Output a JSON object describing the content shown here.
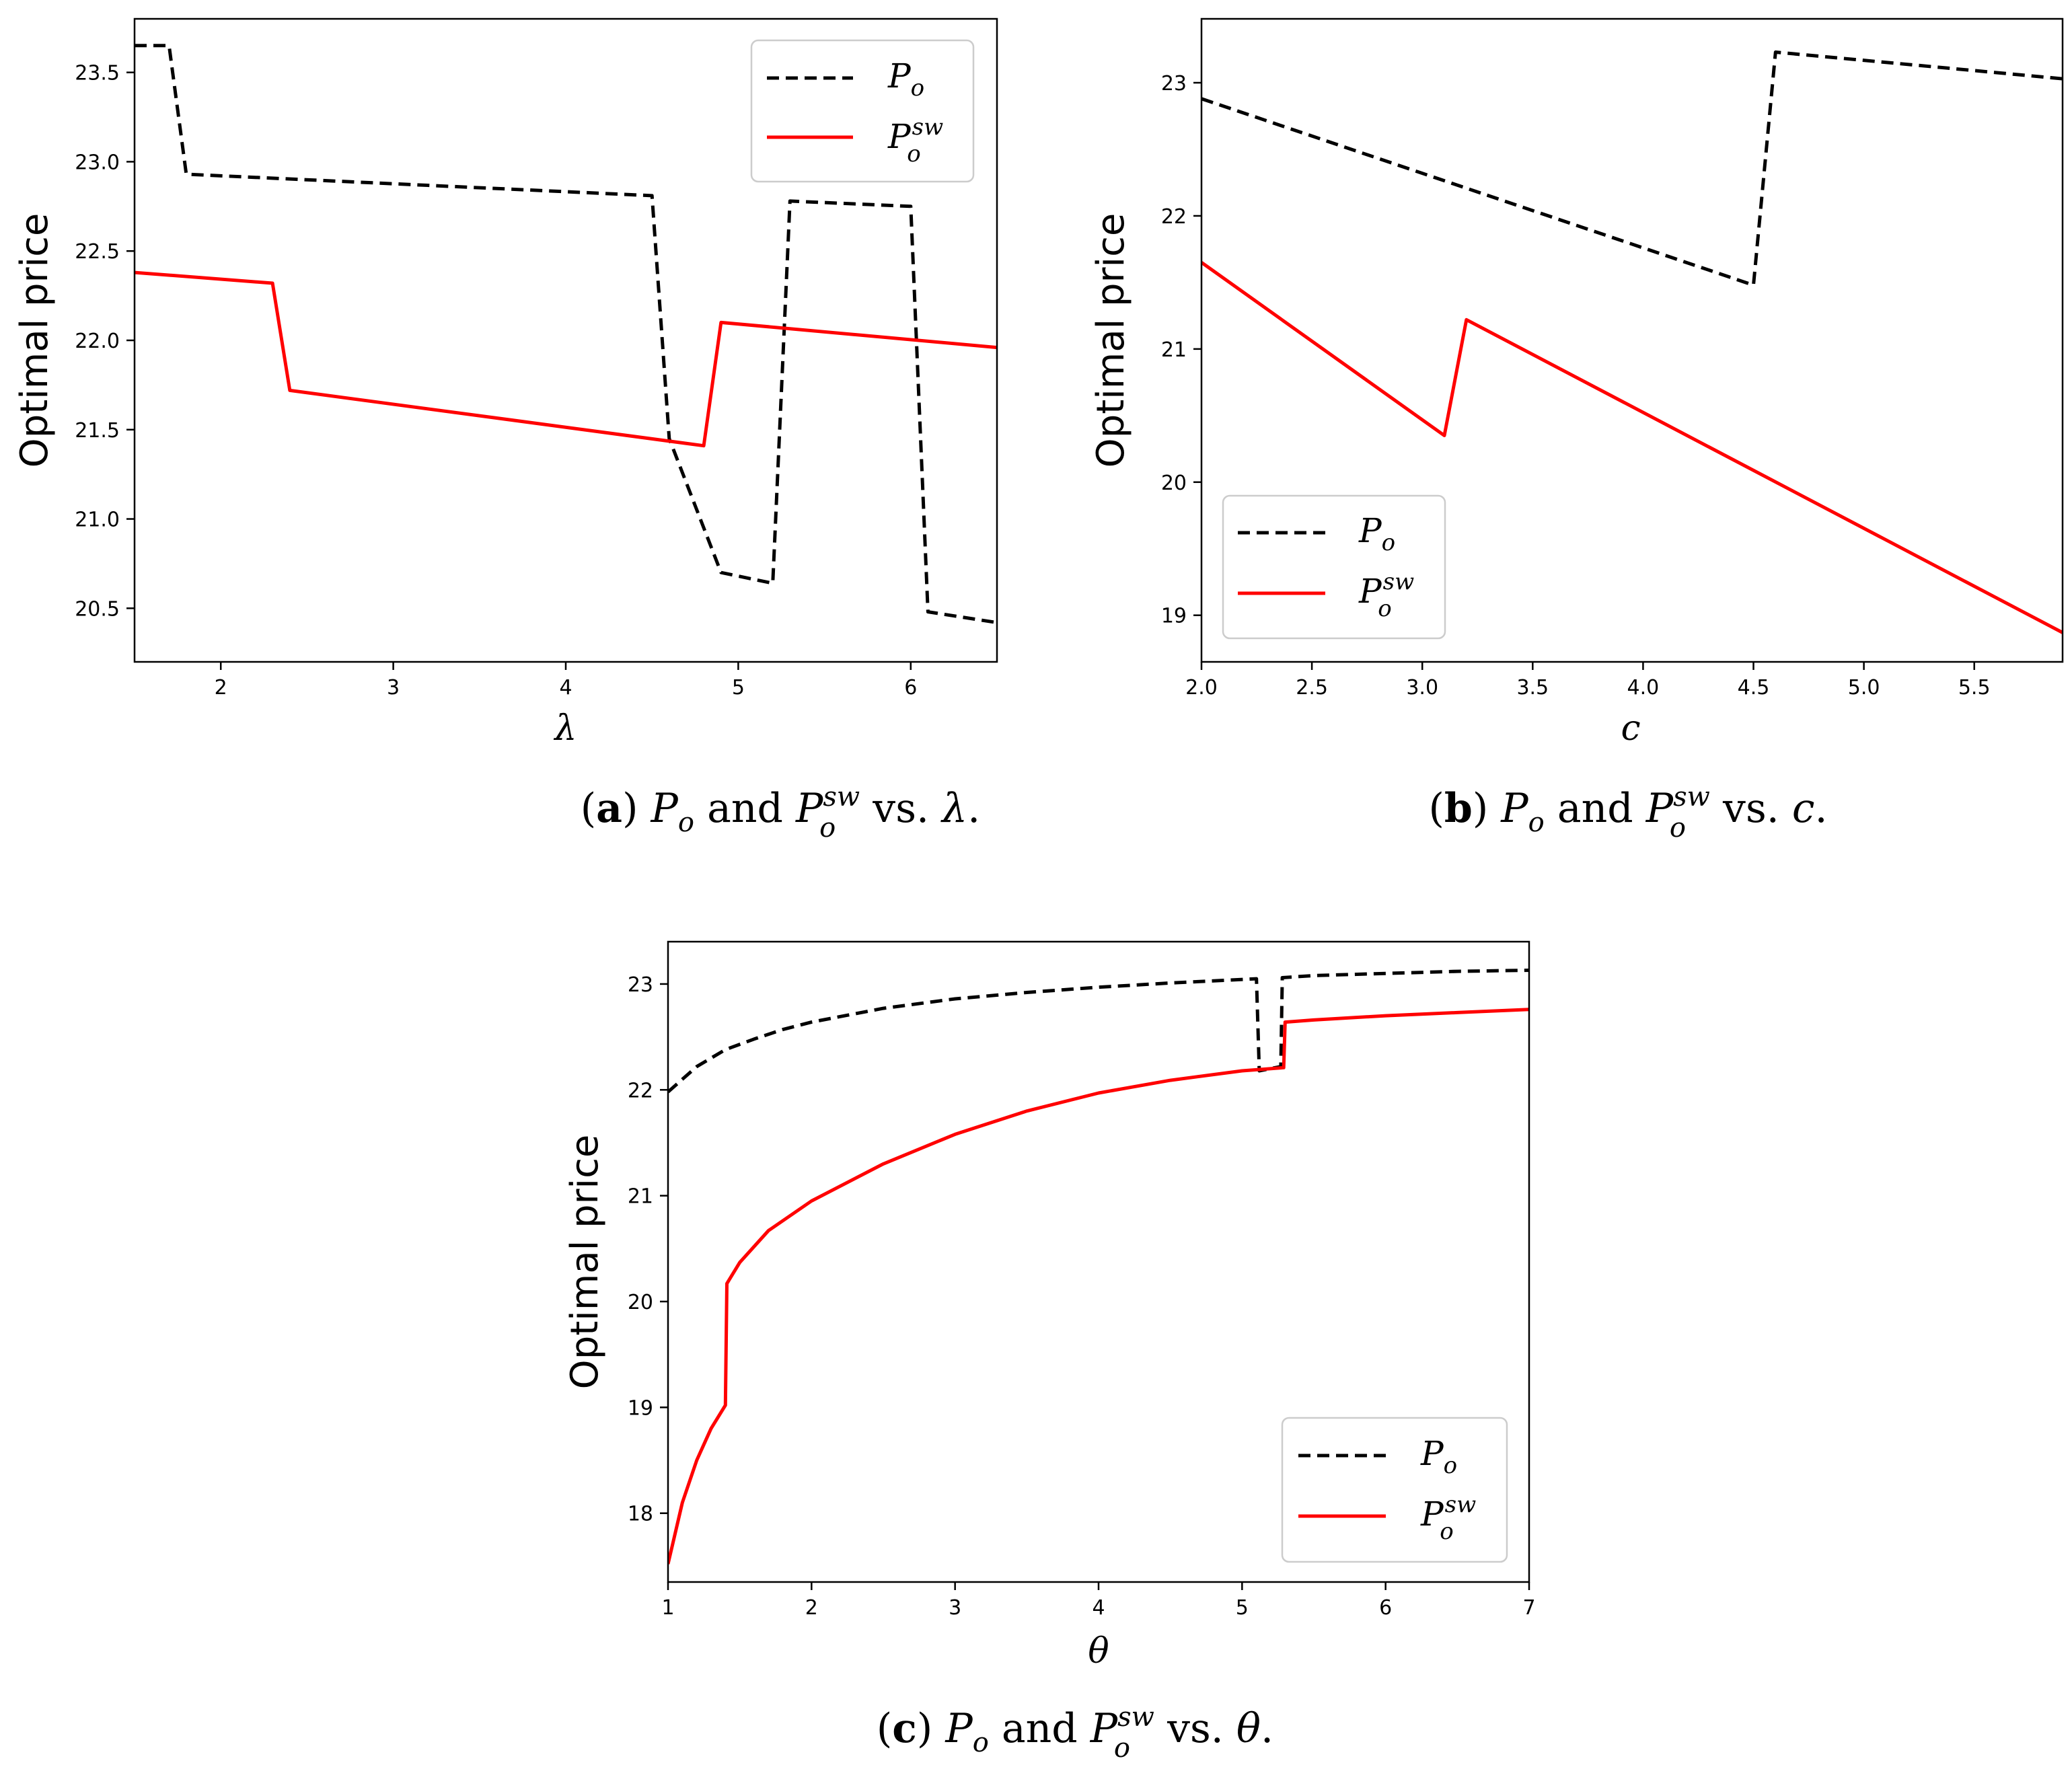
{
  "chart_data": [
    {
      "type": "line",
      "id": "a",
      "caption": {
        "label": "a",
        "mid": " and ",
        "vs": " vs. ",
        "var": "λ",
        "end": "."
      },
      "xlabel": "λ",
      "ylabel": "Optimal price",
      "xlim": [
        1.5,
        6.5
      ],
      "ylim": [
        20.2,
        23.8
      ],
      "xticks": [
        2,
        3,
        4,
        5,
        6
      ],
      "xtick_labels": [
        "2",
        "3",
        "4",
        "5",
        "6"
      ],
      "yticks": [
        20.5,
        21.0,
        21.5,
        22.0,
        22.5,
        23.0,
        23.5
      ],
      "ytick_labels": [
        "20.5",
        "21.0",
        "21.5",
        "22.0",
        "22.5",
        "23.0",
        "23.5"
      ],
      "legend": {
        "position": "top-right",
        "labels": [
          "P_o",
          "P_o^sw"
        ]
      },
      "series": [
        {
          "name": "P_o",
          "style": "dashed",
          "color": "#000000",
          "x": [
            1.5,
            1.7,
            1.8,
            4.5,
            4.6,
            4.9,
            5.2,
            5.3,
            6.0,
            6.1,
            6.5
          ],
          "y": [
            23.65,
            23.65,
            22.93,
            22.81,
            21.45,
            20.7,
            20.64,
            22.78,
            22.75,
            20.48,
            20.42
          ]
        },
        {
          "name": "P_o^sw",
          "style": "solid",
          "color": "#ff0000",
          "x": [
            1.5,
            2.3,
            2.4,
            4.8,
            4.9,
            6.5
          ],
          "y": [
            22.38,
            22.32,
            21.72,
            21.41,
            22.1,
            21.96
          ]
        }
      ]
    },
    {
      "type": "line",
      "id": "b",
      "caption": {
        "label": "b",
        "mid": " and ",
        "vs": " vs. ",
        "var": "c",
        "end": "."
      },
      "xlabel": "c",
      "ylabel": "Optimal price",
      "xlim": [
        2.0,
        5.9
      ],
      "ylim": [
        18.65,
        23.48
      ],
      "xticks": [
        2.0,
        2.5,
        3.0,
        3.5,
        4.0,
        4.5,
        5.0,
        5.5
      ],
      "xtick_labels": [
        "2.0",
        "2.5",
        "3.0",
        "3.5",
        "4.0",
        "4.5",
        "5.0",
        "5.5"
      ],
      "yticks": [
        19,
        20,
        21,
        22,
        23
      ],
      "ytick_labels": [
        "19",
        "20",
        "21",
        "22",
        "23"
      ],
      "legend": {
        "position": "bottom-left",
        "labels": [
          "P_o",
          "P_o^sw"
        ]
      },
      "series": [
        {
          "name": "P_o",
          "style": "dashed",
          "color": "#000000",
          "x": [
            2.0,
            4.5,
            4.6,
            5.9
          ],
          "y": [
            22.88,
            21.48,
            23.23,
            23.03
          ]
        },
        {
          "name": "P_o^sw",
          "style": "solid",
          "color": "#ff0000",
          "x": [
            2.0,
            3.1,
            3.2,
            5.9
          ],
          "y": [
            21.65,
            20.35,
            21.22,
            18.87
          ]
        }
      ]
    },
    {
      "type": "line",
      "id": "c",
      "caption": {
        "label": "c",
        "mid": " and ",
        "vs": " vs. ",
        "var": "θ",
        "end": "."
      },
      "xlabel": "θ",
      "ylabel": "Optimal price",
      "xlim": [
        1,
        7
      ],
      "ylim": [
        17.35,
        23.4
      ],
      "xticks": [
        1,
        2,
        3,
        4,
        5,
        6,
        7
      ],
      "xtick_labels": [
        "1",
        "2",
        "3",
        "4",
        "5",
        "6",
        "7"
      ],
      "yticks": [
        18,
        19,
        20,
        21,
        22,
        23
      ],
      "ytick_labels": [
        "18",
        "19",
        "20",
        "21",
        "22",
        "23"
      ],
      "legend": {
        "position": "bottom-right",
        "labels": [
          "P_o",
          "P_o^sw"
        ]
      },
      "series": [
        {
          "name": "P_o",
          "style": "dashed",
          "color": "#000000",
          "x": [
            1.0,
            1.2,
            1.4,
            1.6,
            1.8,
            2.0,
            2.5,
            3.0,
            3.5,
            4.0,
            4.5,
            5.1,
            5.12,
            5.27,
            5.28,
            5.5,
            6.0,
            6.5,
            7.0
          ],
          "y": [
            21.98,
            22.22,
            22.38,
            22.48,
            22.57,
            22.64,
            22.77,
            22.86,
            22.92,
            22.97,
            23.01,
            23.05,
            22.18,
            22.22,
            23.06,
            23.08,
            23.1,
            23.12,
            23.13
          ]
        },
        {
          "name": "P_o^sw",
          "style": "solid",
          "color": "#ff0000",
          "x": [
            1.0,
            1.1,
            1.2,
            1.3,
            1.4,
            1.41,
            1.5,
            1.7,
            2.0,
            2.5,
            3.0,
            3.5,
            4.0,
            4.5,
            5.0,
            5.29,
            5.3,
            5.5,
            6.0,
            6.5,
            7.0
          ],
          "y": [
            17.52,
            18.1,
            18.5,
            18.8,
            19.02,
            20.17,
            20.37,
            20.67,
            20.95,
            21.3,
            21.58,
            21.8,
            21.97,
            22.09,
            22.18,
            22.21,
            22.64,
            22.66,
            22.7,
            22.73,
            22.76
          ]
        }
      ]
    }
  ],
  "legend_symbols": {
    "base": "P",
    "sub": "o",
    "sup": "sw"
  }
}
